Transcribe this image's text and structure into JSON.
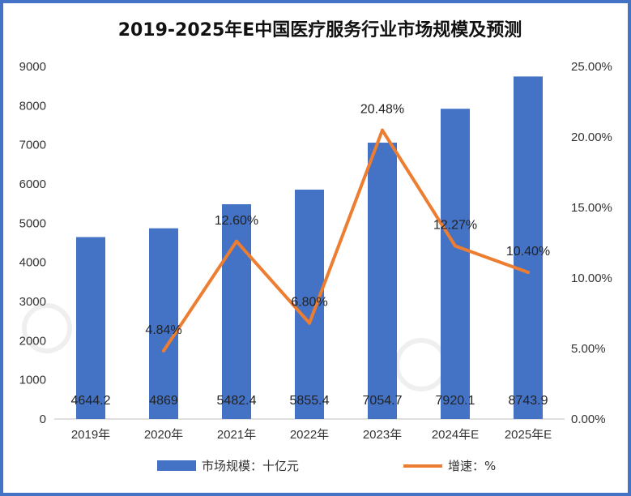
{
  "chart_data": {
    "type": "bar",
    "title": "2019-2025年E中国医疗服务行业市场规模及预测",
    "categories": [
      "2019年",
      "2020年",
      "2021年",
      "2022年",
      "2023年",
      "2024年E",
      "2025年E"
    ],
    "series": [
      {
        "name": "市场规模：十亿元",
        "type": "bar",
        "axis": "left",
        "color": "#4472c4",
        "values": [
          4644.2,
          4869,
          5482.4,
          5855.4,
          7054.7,
          7920.1,
          8743.9
        ],
        "labels": [
          "4644.2",
          "4869",
          "5482.4",
          "5855.4",
          "7054.7",
          "7920.1",
          "8743.9"
        ]
      },
      {
        "name": "增速：%",
        "type": "line",
        "axis": "right",
        "color": "#ed7d31",
        "values": [
          null,
          4.84,
          12.6,
          6.8,
          20.48,
          12.27,
          10.4
        ],
        "labels": [
          "",
          "4.84%",
          "12.60%",
          "6.80%",
          "20.48%",
          "12.27%",
          "10.40%"
        ]
      }
    ],
    "y_left": {
      "ylim": [
        0,
        9000
      ],
      "ticks": [
        "0",
        "1000",
        "2000",
        "3000",
        "4000",
        "5000",
        "6000",
        "7000",
        "8000",
        "9000"
      ]
    },
    "y_right": {
      "ylim": [
        0,
        25
      ],
      "ticks": [
        "0.00%",
        "5.00%",
        "10.00%",
        "15.00%",
        "20.00%",
        "25.00%"
      ]
    },
    "grid": false,
    "legend": "bottom"
  }
}
